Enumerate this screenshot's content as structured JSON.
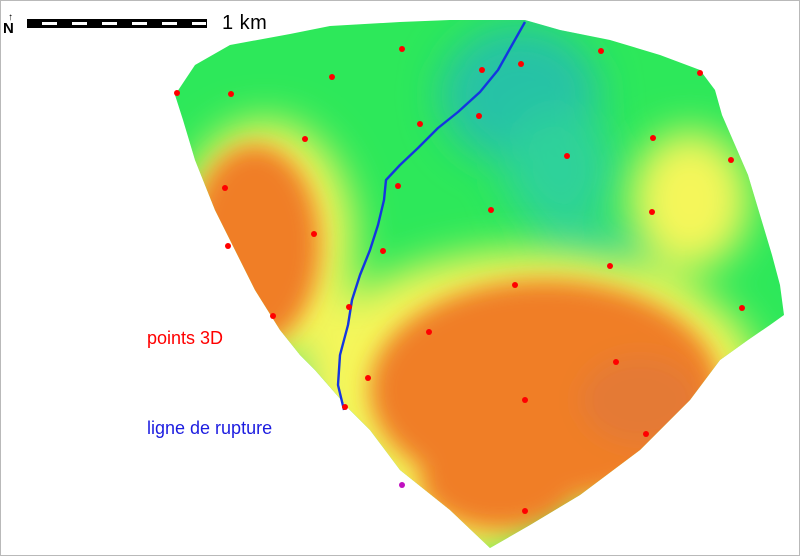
{
  "map": {
    "scale_label": "1  km",
    "north_label": "N",
    "colors": {
      "dem_low": "#26c2a6",
      "dem_green": "#2de85a",
      "dem_yellow": "#f5f65a",
      "dem_high": "#f07e28",
      "points": "#ff0000",
      "break_line": "#1436e0",
      "frame": "#b9b9b9"
    }
  },
  "legend": {
    "points_label": "points 3D",
    "points_color": "#ff0000",
    "break_line_label": "ligne de rupture",
    "break_line_color": "#1c1ce0"
  }
}
